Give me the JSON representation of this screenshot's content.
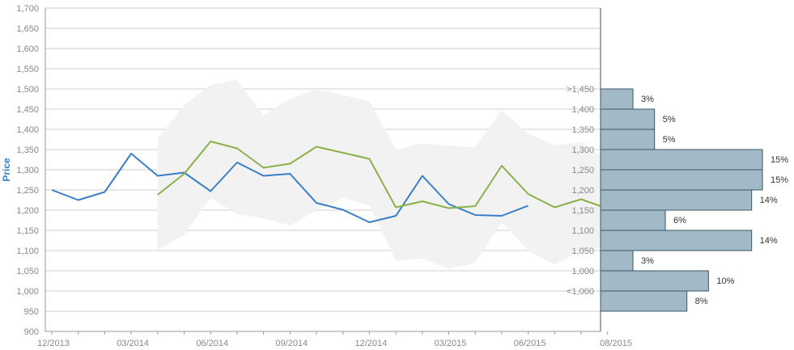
{
  "chart_data": {
    "type": "line",
    "ylabel": "Price",
    "ylim": [
      900,
      1700
    ],
    "y_ticks": [
      "900",
      "950",
      "1,000",
      "1,050",
      "1,100",
      "1,150",
      "1,200",
      "1,250",
      "1,300",
      "1,350",
      "1,400",
      "1,450",
      "1,500",
      "1,550",
      "1,600",
      "1,650",
      "1,700"
    ],
    "x_tick_labels": [
      "12/2013",
      "03/2014",
      "06/2014",
      "09/2014",
      "12/2014",
      "03/2015",
      "06/2015",
      "08/2015"
    ],
    "colors": {
      "series_blue": "#3a7ec6",
      "series_green": "#8bb04a",
      "band": "#f2f2f2",
      "histogram": "#a2b9c7",
      "histogram_border": "#3d5566",
      "grid": "#cfcfcf"
    },
    "series": [
      {
        "values": [
          1250,
          1225,
          1245,
          1340,
          1285,
          1293,
          1247,
          1318,
          1285,
          1290,
          1218,
          1201,
          1170,
          1186,
          1285,
          1215,
          1188,
          1186,
          1211
        ]
      },
      {
        "start_index": 4,
        "values": [
          1238,
          1290,
          1370,
          1353,
          1305,
          1315,
          1357,
          1342,
          1327,
          1207,
          1222,
          1205,
          1210,
          1310,
          1240,
          1207,
          1227,
          1210
        ]
      }
    ],
    "band": {
      "start_index": 4,
      "upper": [
        1378,
        1460,
        1510,
        1522,
        1435,
        1475,
        1498,
        1485,
        1470,
        1350,
        1365,
        1360,
        1355,
        1447,
        1390,
        1360,
        1368,
        1320
      ],
      "lower": [
        1100,
        1140,
        1230,
        1190,
        1180,
        1162,
        1200,
        1230,
        1212,
        1075,
        1080,
        1055,
        1070,
        1170,
        1100,
        1065,
        1100,
        1110
      ]
    },
    "histogram": {
      "bins": [
        {
          "label": ">1,450",
          "percent": 3,
          "percent_label": "3%"
        },
        {
          "label": "1,400",
          "percent": 5,
          "percent_label": "5%"
        },
        {
          "label": "1,350",
          "percent": 5,
          "percent_label": "5%"
        },
        {
          "label": "1,300",
          "percent": 15,
          "percent_label": "15%"
        },
        {
          "label": "1,250",
          "percent": 15,
          "percent_label": "15%"
        },
        {
          "label": "1,200",
          "percent": 14,
          "percent_label": "14%"
        },
        {
          "label": "1,150",
          "percent": 6,
          "percent_label": "6%"
        },
        {
          "label": "1,100",
          "percent": 14,
          "percent_label": "14%"
        },
        {
          "label": "1,050",
          "percent": 3,
          "percent_label": "3%"
        },
        {
          "label": "1,000",
          "percent": 10,
          "percent_label": "10%"
        },
        {
          "label": "<1,000",
          "percent": 8,
          "percent_label": "8%"
        }
      ]
    }
  }
}
